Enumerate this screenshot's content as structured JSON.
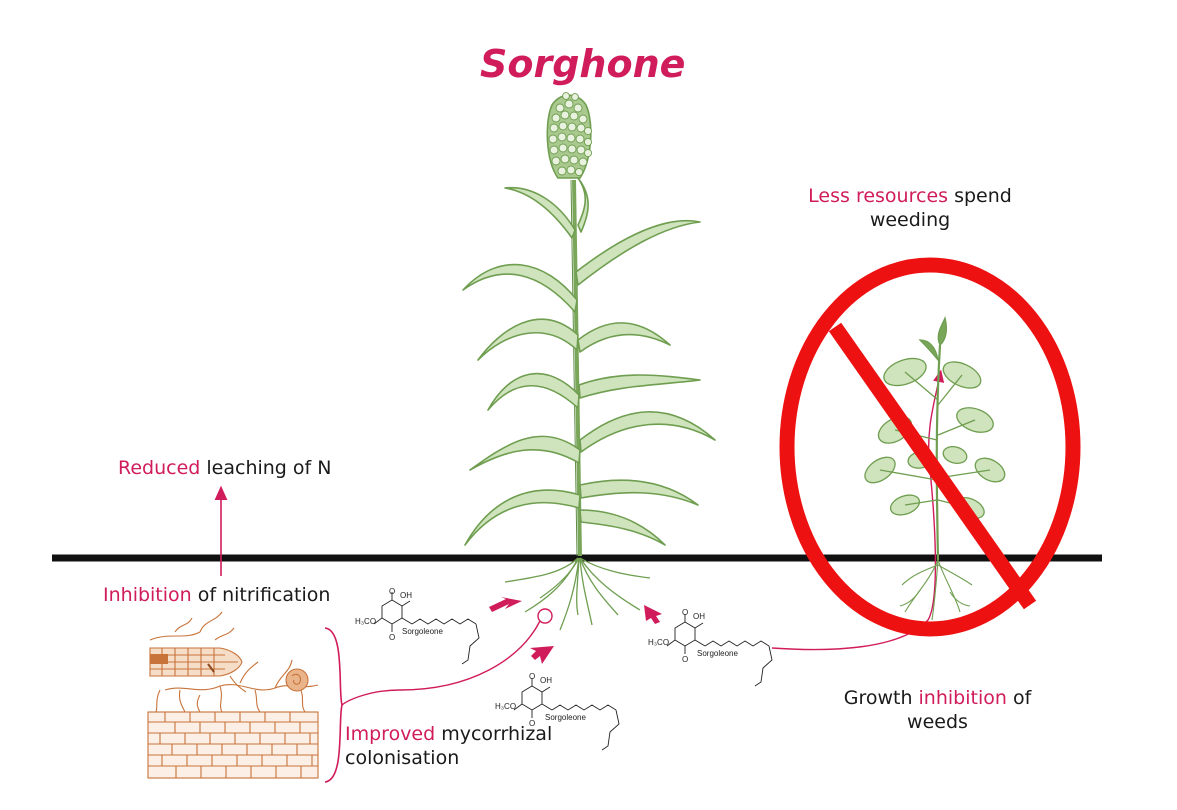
{
  "title": "Sorghone",
  "labels": {
    "less_resources_hl": "Less resources",
    "less_resources_rest": " spend",
    "less_resources_line2": "weeding",
    "reduced_hl": "Reduced",
    "reduced_rest": " leaching of N",
    "inhibition_hl": "Inhibition",
    "inhibition_rest": " of nitrification",
    "improved_hl": "Improved",
    "improved_rest": " mycorrhizal",
    "improved_line2": "colonisation",
    "growth_pre": "Growth ",
    "growth_hl": "inhibition",
    "growth_rest": " of",
    "growth_line2": "weeds"
  },
  "molecules": {
    "name": "Sorgoleone",
    "oh": "OH",
    "o": "O",
    "h3co": "H₃CO"
  },
  "colors": {
    "accent": "#d01c5b",
    "plant": "#7aa65a",
    "plant_dark": "#5e8c45",
    "root_fungi": "#c8733a",
    "ban_sign": "#ee1111",
    "ground": "#111111"
  }
}
